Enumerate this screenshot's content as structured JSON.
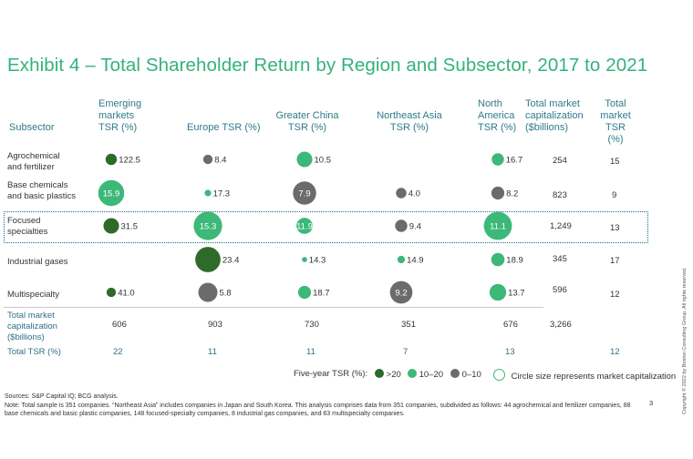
{
  "title": "Exhibit 4 – Total Shareholder Return by Region and Subsector, 2017 to 2021",
  "headers": {
    "subsector": "Subsector",
    "emerging": [
      "Emerging",
      "markets",
      "TSR (%)"
    ],
    "europe": "Europe TSR (%)",
    "china": [
      "Greater China",
      "TSR (%)"
    ],
    "neasia": [
      "Northeast Asia",
      "TSR (%)"
    ],
    "namerica": [
      "North",
      "America",
      "TSR (%)"
    ],
    "mktcap": [
      "Total market",
      "capitalization",
      "($billions)"
    ],
    "totaltsr": [
      "Total",
      "market",
      "TSR (%)"
    ]
  },
  "rows": [
    {
      "label": [
        "Agrochemical",
        "and fertilizer"
      ],
      "mktcap": "254",
      "tsr": "15"
    },
    {
      "label": [
        "Base chemicals",
        "and basic plastics"
      ],
      "mktcap": "823",
      "tsr": "9"
    },
    {
      "label": [
        "Focused",
        "specialties"
      ],
      "mktcap": "1,249",
      "tsr": "13"
    },
    {
      "label": [
        "Industrial gases"
      ],
      "mktcap": "345",
      "tsr": "17"
    },
    {
      "label": [
        "Multispecialty"
      ],
      "mktcap": "596",
      "tsr": "12"
    }
  ],
  "totals_mktcap": {
    "label": [
      "Total market",
      "capitalization",
      "($billions)"
    ],
    "values": [
      "606",
      "903",
      "730",
      "351",
      "676",
      "3,266"
    ]
  },
  "totals_tsr": {
    "label": "Total TSR (%)",
    "values": [
      "22",
      "11",
      "11",
      "7",
      "13",
      "12"
    ]
  },
  "legend": {
    "title": "Five-year TSR (%):",
    "items": [
      {
        "label": ">20",
        "color": "#2e6b2a"
      },
      {
        "label": "10–20",
        "color": "#3cb878"
      },
      {
        "label": "0–10",
        "color": "#6b6b6b"
      }
    ],
    "size_note": "Circle size represents market capitalization"
  },
  "sources": "Sources: S&P Capital IQ; BCG analysis.",
  "note": "Note: Total sample is 351 companies. “Northeast Asia” includes companies in Japan and South Korea. This analysis comprises data from 351 companies, subdivided as follows: 44 agrochemical and fertilizer companies, 88 base chemicals and basic plastic companies, 148 focused-specialty companies, 8 industrial gas companies, and 63 multispecialty companies.",
  "page_number": "3",
  "copyright": "Copyright © 2022 by Boston Consulting Group. All rights reserved.",
  "chart_data": {
    "type": "table",
    "title": "Exhibit 4 – Total Shareholder Return by Region and Subsector, 2017 to 2021",
    "columns": [
      "Emerging markets TSR (%)",
      "Europe TSR (%)",
      "Greater China TSR (%)",
      "Northeast Asia TSR (%)",
      "North America TSR (%)"
    ],
    "rows": [
      "Agrochemical and fertilizer",
      "Base chemicals and basic plastics",
      "Focused specialties",
      "Industrial gases",
      "Multispecialty"
    ],
    "tsr": [
      [
        "122.5",
        "8.4",
        "10.5",
        "",
        "16.7"
      ],
      [
        "15.9",
        "17.3",
        "7.9",
        "4.0",
        "8.2"
      ],
      [
        "31.5",
        "15.3",
        "11.9",
        "9.4",
        "11.1"
      ],
      [
        "",
        "23.4",
        "14.3",
        "14.9",
        "18.9"
      ],
      [
        "41.0",
        "5.8",
        "18.7",
        "9.2",
        "13.7"
      ]
    ],
    "market_cap_relative": [
      [
        0.1,
        0.06,
        0.22,
        0,
        0.12
      ],
      [
        0.72,
        0.02,
        0.56,
        0.08,
        0.14
      ],
      [
        0.22,
        0.88,
        0.24,
        0.12,
        0.86
      ],
      [
        0,
        0.68,
        0.008,
        0.03,
        0.15
      ],
      [
        0.06,
        0.36,
        0.14,
        0.52,
        0.26
      ]
    ],
    "inside_label": [
      [
        false,
        false,
        false,
        false,
        false
      ],
      [
        true,
        false,
        true,
        false,
        false
      ],
      [
        false,
        true,
        true,
        false,
        true
      ],
      [
        false,
        false,
        false,
        false,
        false
      ],
      [
        false,
        false,
        false,
        true,
        false
      ]
    ],
    "color_bins": {
      ">20": "#2e6b2a",
      "10–20": "#3cb878",
      "0–10": "#6b6b6b"
    },
    "row_market_cap": [
      "254",
      "823",
      "1,249",
      "345",
      "596"
    ],
    "row_total_tsr": [
      "15",
      "9",
      "13",
      "17",
      "12"
    ],
    "column_market_cap": [
      "606",
      "903",
      "730",
      "351",
      "676"
    ],
    "column_total_tsr": [
      "22",
      "11",
      "11",
      "7",
      "13"
    ],
    "total_market_cap": "3,266",
    "total_tsr": "12"
  }
}
